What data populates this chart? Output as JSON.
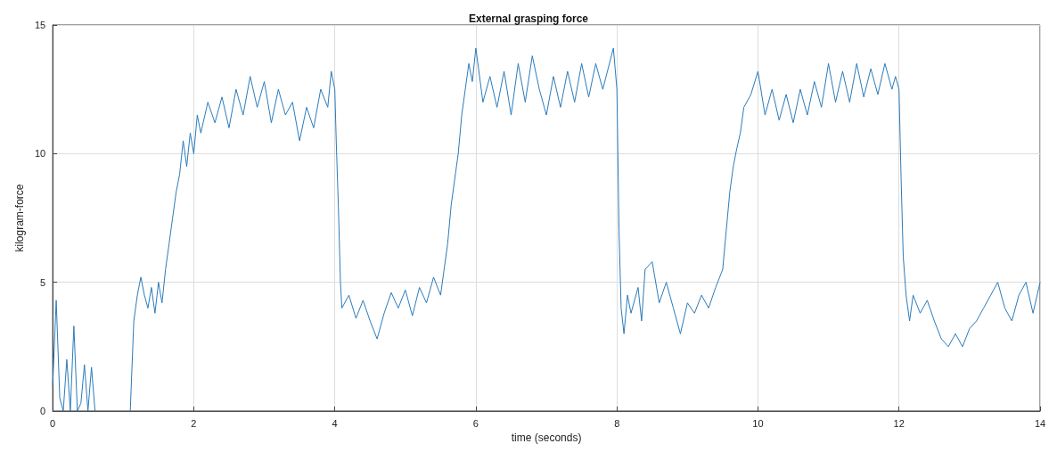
{
  "chart_data": {
    "type": "line",
    "title": "External grasping force",
    "xlabel": "time (seconds)",
    "ylabel": "kilogram-force",
    "xlim": [
      0,
      14
    ],
    "xticks": [
      0,
      2,
      4,
      6,
      8,
      10,
      12,
      14
    ],
    "ylim": [
      0,
      15
    ],
    "yticks": [
      0,
      5,
      10,
      15
    ],
    "grid": true,
    "line_style": "solid",
    "marker": "none",
    "series": [
      {
        "color": "#2b7bba",
        "x": [
          0,
          0.05,
          0.1,
          0.15,
          0.2,
          0.25,
          0.3,
          0.35,
          0.4,
          0.45,
          0.5,
          0.55,
          0.6,
          0.8,
          1.1,
          1.15,
          1.2,
          1.25,
          1.3,
          1.35,
          1.4,
          1.45,
          1.5,
          1.55,
          1.6,
          1.65,
          1.7,
          1.75,
          1.8,
          1.85,
          1.9,
          1.95,
          2.0,
          2.05,
          2.1,
          2.2,
          2.3,
          2.4,
          2.5,
          2.6,
          2.7,
          2.8,
          2.9,
          3.0,
          3.1,
          3.2,
          3.3,
          3.4,
          3.5,
          3.6,
          3.7,
          3.8,
          3.9,
          3.95,
          4.0,
          4.02,
          4.05,
          4.08,
          4.1,
          4.2,
          4.3,
          4.4,
          4.5,
          4.6,
          4.7,
          4.8,
          4.9,
          5.0,
          5.1,
          5.2,
          5.3,
          5.4,
          5.5,
          5.55,
          5.6,
          5.65,
          5.7,
          5.75,
          5.8,
          5.85,
          5.9,
          5.95,
          6.0,
          6.1,
          6.2,
          6.3,
          6.4,
          6.5,
          6.6,
          6.7,
          6.8,
          6.9,
          7.0,
          7.1,
          7.2,
          7.3,
          7.4,
          7.5,
          7.6,
          7.7,
          7.8,
          7.95,
          8.0,
          8.03,
          8.06,
          8.1,
          8.15,
          8.2,
          8.3,
          8.35,
          8.4,
          8.5,
          8.6,
          8.7,
          8.8,
          8.9,
          9.0,
          9.1,
          9.2,
          9.3,
          9.4,
          9.5,
          9.55,
          9.6,
          9.65,
          9.7,
          9.75,
          9.8,
          9.9,
          10.0,
          10.1,
          10.2,
          10.3,
          10.4,
          10.5,
          10.6,
          10.7,
          10.8,
          10.9,
          11.0,
          11.1,
          11.2,
          11.3,
          11.4,
          11.5,
          11.6,
          11.7,
          11.8,
          11.9,
          11.95,
          12.0,
          12.03,
          12.06,
          12.1,
          12.15,
          12.2,
          12.3,
          12.4,
          12.5,
          12.6,
          12.7,
          12.8,
          12.9,
          13.0,
          13.1,
          13.2,
          13.3,
          13.4,
          13.5,
          13.6,
          13.7,
          13.8,
          13.9,
          14.0
        ],
        "values": [
          1,
          4.3,
          0.5,
          0,
          2.0,
          0,
          3.3,
          0,
          0.3,
          1.8,
          0,
          1.7,
          0,
          null,
          0,
          3.5,
          4.5,
          5.2,
          4.5,
          4.0,
          4.8,
          3.8,
          5.0,
          4.2,
          5.5,
          6.5,
          7.5,
          8.5,
          9.2,
          10.5,
          9.5,
          10.8,
          10.0,
          11.5,
          10.8,
          12.0,
          11.2,
          12.2,
          11.0,
          12.5,
          11.5,
          13.0,
          11.8,
          12.8,
          11.2,
          12.5,
          11.5,
          12.0,
          10.5,
          11.8,
          11.0,
          12.5,
          11.8,
          13.2,
          12.5,
          10.5,
          8,
          5.0,
          4.0,
          4.5,
          3.6,
          4.3,
          3.5,
          2.8,
          3.8,
          4.6,
          4.0,
          4.7,
          3.7,
          4.8,
          4.2,
          5.2,
          4.5,
          5.5,
          6.5,
          8.0,
          9.0,
          10.0,
          11.5,
          12.5,
          13.5,
          12.8,
          14.1,
          12.0,
          13.0,
          11.8,
          13.2,
          11.5,
          13.5,
          12.0,
          13.8,
          12.5,
          11.5,
          13.0,
          11.8,
          13.2,
          12.0,
          13.5,
          12.2,
          13.5,
          12.5,
          14.1,
          12.5,
          7,
          4.0,
          3.0,
          4.5,
          3.8,
          4.8,
          3.5,
          5.5,
          5.8,
          4.2,
          5.0,
          4.0,
          3.0,
          4.2,
          3.8,
          4.5,
          4.0,
          4.8,
          5.5,
          7.0,
          8.5,
          9.5,
          10.2,
          10.8,
          11.8,
          12.3,
          13.2,
          11.5,
          12.5,
          11.3,
          12.3,
          11.2,
          12.5,
          11.5,
          12.8,
          11.8,
          13.5,
          12.0,
          13.2,
          12.0,
          13.5,
          12.2,
          13.3,
          12.3,
          13.5,
          12.5,
          13.0,
          12.5,
          9,
          6,
          4.5,
          3.5,
          4.5,
          3.8,
          4.3,
          3.5,
          2.8,
          2.5,
          3.0,
          2.5,
          3.2,
          3.5,
          4.0,
          4.5,
          5.0,
          4.0,
          3.5,
          4.5,
          5.0,
          3.8,
          5.0
        ]
      }
    ]
  }
}
